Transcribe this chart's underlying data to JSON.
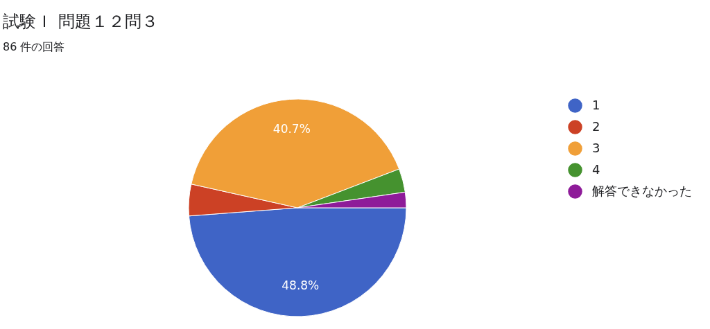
{
  "chart_data": {
    "type": "pie",
    "title": "試験Ｉ 問題１２問３",
    "subtitle": "86 件の回答",
    "categories": [
      "1",
      "2",
      "3",
      "4",
      "解答できなかった"
    ],
    "values": [
      48.8,
      4.7,
      40.7,
      3.5,
      2.3
    ],
    "colors": [
      "#3f64c6",
      "#cc4125",
      "#f09f38",
      "#45922f",
      "#8e1b99"
    ],
    "value_labels": [
      "48.8%",
      null,
      "40.7%",
      null,
      null
    ],
    "legend": "right"
  }
}
